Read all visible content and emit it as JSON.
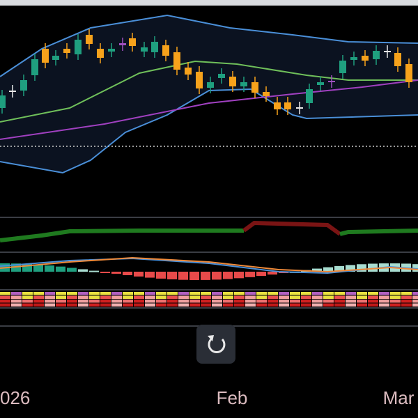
{
  "time_axis": {
    "labels": [
      "026",
      "Feb",
      "Mar"
    ]
  }
}
